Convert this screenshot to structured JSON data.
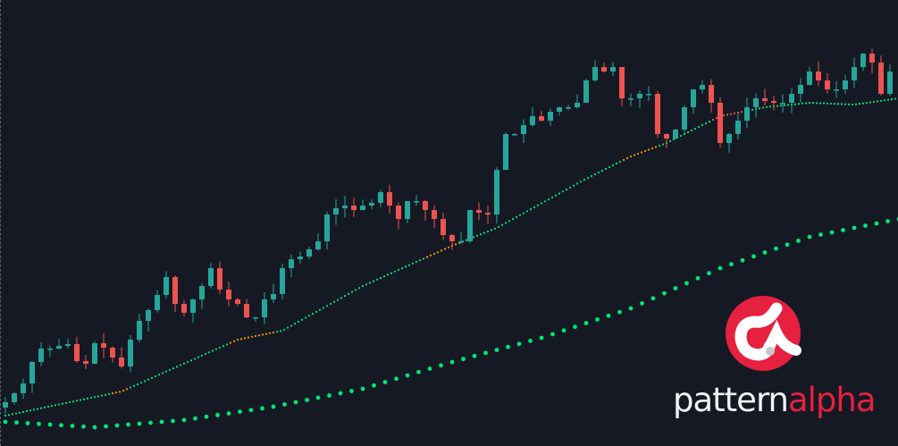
{
  "chart_data": {
    "type": "candlestick",
    "title": "",
    "xlabel": "",
    "ylabel": "",
    "ylim": [
      0,
      499
    ],
    "grid": false,
    "closes": [
      49,
      59,
      70,
      94,
      109,
      109,
      112,
      114,
      95,
      92,
      115,
      110,
      99,
      89,
      119,
      140,
      152,
      169,
      189,
      159,
      149,
      164,
      179,
      199,
      175,
      164,
      159,
      144,
      144,
      164,
      170,
      199,
      209,
      212,
      220,
      229,
      259,
      266,
      269,
      264,
      269,
      272,
      284,
      269,
      254,
      274,
      274,
      264,
      254,
      236,
      229,
      229,
      264,
      261,
      259,
      309,
      349,
      349,
      359,
      369,
      364,
      374,
      379,
      379,
      384,
      409,
      424,
      419,
      424,
      389,
      389,
      394,
      394,
      349,
      344,
      354,
      379,
      399,
      404,
      384,
      339,
      349,
      364,
      379,
      389,
      386,
      384,
      384,
      394,
      404,
      419,
      409,
      399,
      399,
      409,
      424,
      439,
      429,
      394,
      419
    ],
    "ma_fast": [
      [
        0,
        34
      ],
      [
        13,
        61
      ],
      [
        26,
        119
      ],
      [
        31,
        129
      ],
      [
        40,
        179
      ],
      [
        50,
        224
      ],
      [
        55,
        244
      ],
      [
        65,
        299
      ],
      [
        70,
        324
      ],
      [
        74,
        339
      ],
      [
        80,
        369
      ],
      [
        85,
        379
      ],
      [
        90,
        384
      ],
      [
        95,
        382
      ],
      [
        100,
        389
      ]
    ],
    "ma_fast_orange_ranges": [
      [
        12,
        14
      ],
      [
        25,
        30
      ],
      [
        47,
        51
      ],
      [
        69,
        73
      ]
    ],
    "ma_fast_red_ranges": [
      [
        79,
        83
      ]
    ],
    "ma_slow": [
      [
        0,
        27
      ],
      [
        10,
        21
      ],
      [
        20,
        29
      ],
      [
        30,
        44
      ],
      [
        40,
        64
      ],
      [
        50,
        94
      ],
      [
        60,
        121
      ],
      [
        70,
        154
      ],
      [
        80,
        199
      ],
      [
        90,
        234
      ],
      [
        100,
        254
      ]
    ],
    "colors": {
      "up": "#26a69a",
      "down": "#ef5350",
      "ma": "#00e676",
      "ma_orange": "#ff9800",
      "ma_red": "#ef5350",
      "background": "#151924"
    }
  },
  "logo": {
    "text_white": "pattern",
    "text_red": "alpha",
    "red": "#e5213f"
  }
}
